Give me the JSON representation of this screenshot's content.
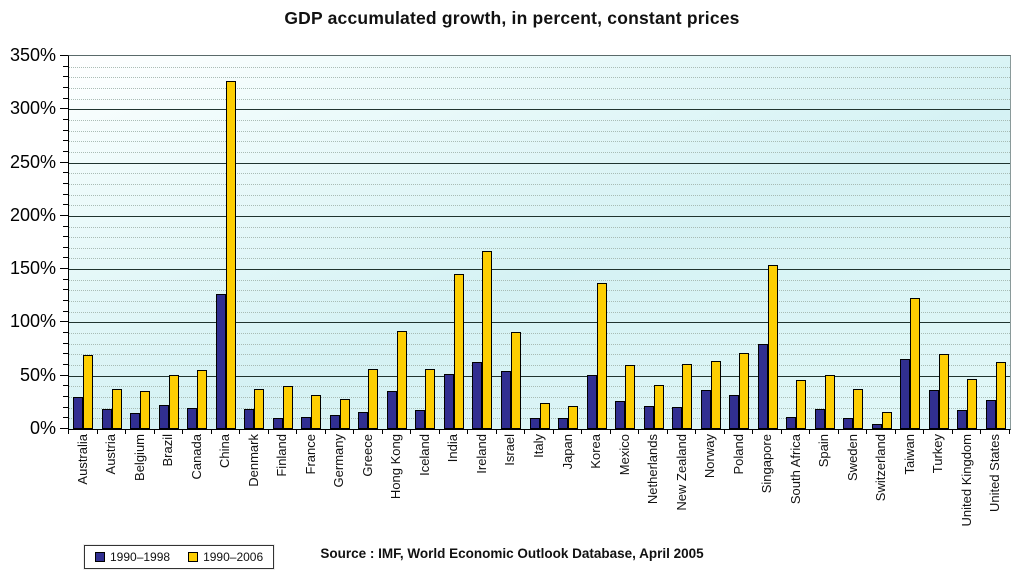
{
  "title": "GDP accumulated growth, in percent, constant prices",
  "source": "Source : IMF, World Economic Outlook Database, April 2005",
  "colors": {
    "series1": "#312f91",
    "series2": "#fdce02",
    "plot_bg_top": "#ffffff",
    "plot_bg_bottom": "#d5f2f4",
    "major_grid": "#20342f",
    "minor_grid": "#a3b6ae"
  },
  "legend": {
    "items": [
      {
        "label": "1990–1998",
        "color": "#312f91"
      },
      {
        "label": "1990–2006",
        "color": "#fdce02"
      }
    ]
  },
  "chart_data": {
    "type": "bar",
    "title": "GDP accumulated growth, in percent, constant prices",
    "xlabel": "",
    "ylabel": "",
    "ylim": [
      0,
      350
    ],
    "ytick_values": [
      0,
      50,
      100,
      150,
      200,
      250,
      300,
      350
    ],
    "ytick_labels": [
      "0%",
      "50%",
      "100%",
      "150%",
      "200%",
      "250%",
      "300%",
      "350%"
    ],
    "minor_grid_step": 10,
    "grid": "major solid every 50%, minor dotted every 10%",
    "legend_position": "bottom-left",
    "categories": [
      "Australia",
      "Austria",
      "Belgium",
      "Brazil",
      "Canada",
      "China",
      "Denmark",
      "Finland",
      "France",
      "Germany",
      "Greece",
      "Hong Kong",
      "Iceland",
      "India",
      "Ireland",
      "Israel",
      "Italy",
      "Japan",
      "Korea",
      "Mexico",
      "Netherlands",
      "New Zealand",
      "Norway",
      "Poland",
      "Singapore",
      "South Africa",
      "Spain",
      "Sweden",
      "Switzerland",
      "Taiwan",
      "Turkey",
      "United Kingdom",
      "United States"
    ],
    "series": [
      {
        "name": "1990–1998",
        "color": "#312f91",
        "values": [
          30,
          19,
          15,
          23,
          20,
          127,
          19,
          10,
          11,
          13,
          16,
          36,
          18,
          52,
          63,
          54,
          10,
          10,
          51,
          26,
          22,
          21,
          37,
          32,
          80,
          11,
          19,
          10,
          5,
          66,
          37,
          18,
          27
        ]
      },
      {
        "name": "1990–2006",
        "color": "#fdce02",
        "values": [
          69,
          38,
          36,
          51,
          55,
          327,
          38,
          40,
          32,
          28,
          56,
          92,
          56,
          145,
          167,
          91,
          24,
          22,
          137,
          60,
          41,
          61,
          64,
          71,
          154,
          46,
          51,
          38,
          16,
          123,
          70,
          47,
          63
        ]
      }
    ]
  }
}
